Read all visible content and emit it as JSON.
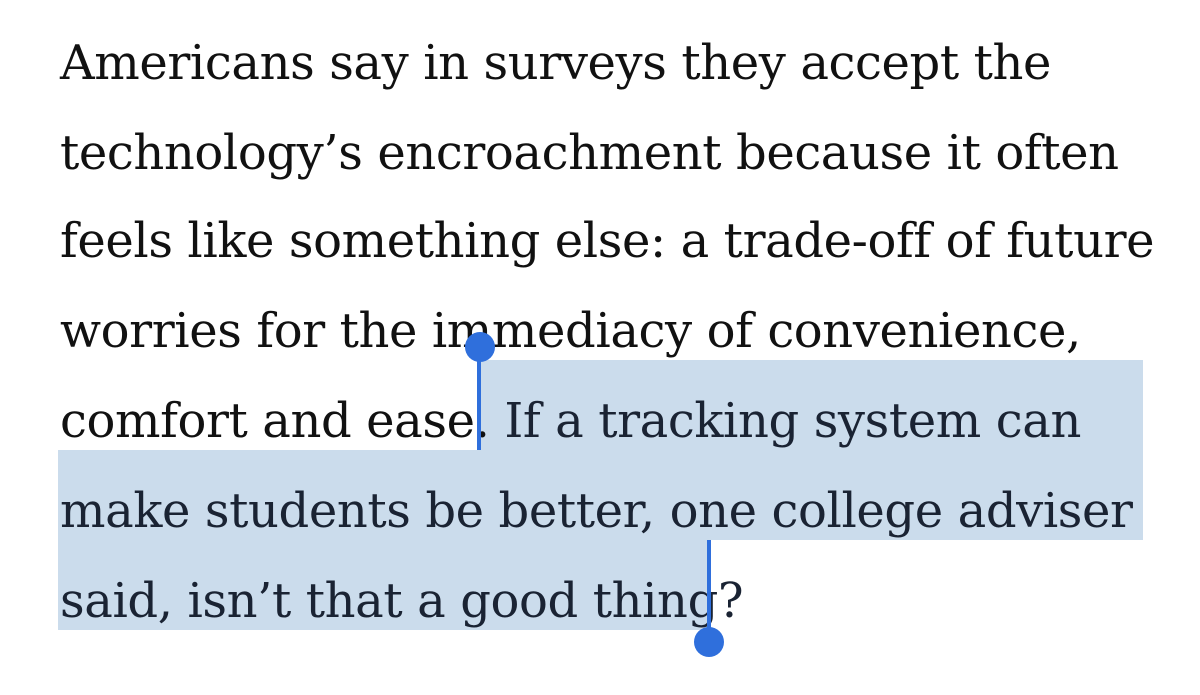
{
  "article": {
    "lines": [
      "Americans say in surveys they accept the",
      "technology’s encroachment because it often",
      "feels like something else: a trade-off of future",
      "worries for the immediacy of convenience,",
      "comfort and ease. ",
      "make students be better, one college adviser",
      "said, isn’t that a good thing?"
    ],
    "selection": {
      "line5_selected": "If a tracking system can"
    }
  },
  "colors": {
    "selection_highlight": "#cbdcec",
    "selection_handle": "#2f6fdc",
    "text": "#111111"
  }
}
